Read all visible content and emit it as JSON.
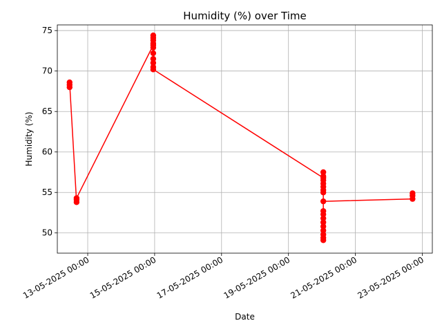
{
  "chart_data": {
    "type": "line",
    "title": "Humidity (%) over Time",
    "xlabel": "Date",
    "ylabel": "Humidity (%)",
    "x_is_datetime": true,
    "x_date_format": "DD-MM-YYYY HH:mm",
    "xlim": [
      "2025-05-12T02:12",
      "2025-05-23T07:12"
    ],
    "ylim": [
      47.5,
      75.7
    ],
    "grid": true,
    "legend": "none",
    "x_ticks": [
      {
        "value": "2025-05-13T00:00",
        "label": "13-05-2025 00:00"
      },
      {
        "value": "2025-05-15T00:00",
        "label": "15-05-2025 00:00"
      },
      {
        "value": "2025-05-17T00:00",
        "label": "17-05-2025 00:00"
      },
      {
        "value": "2025-05-19T00:00",
        "label": "19-05-2025 00:00"
      },
      {
        "value": "2025-05-21T00:00",
        "label": "21-05-2025 00:00"
      },
      {
        "value": "2025-05-23T00:00",
        "label": "23-05-2025 00:00"
      }
    ],
    "y_ticks": [
      {
        "value": 50,
        "label": "50"
      },
      {
        "value": 55,
        "label": "55"
      },
      {
        "value": 60,
        "label": "60"
      },
      {
        "value": 65,
        "label": "65"
      },
      {
        "value": 70,
        "label": "70"
      },
      {
        "value": 75,
        "label": "75"
      }
    ],
    "series": [
      {
        "color": "#ff0000",
        "marker": "circle",
        "points": [
          {
            "x": "2025-05-12T11:00",
            "y": 68.0
          },
          {
            "x": "2025-05-12T11:00",
            "y": 68.3
          },
          {
            "x": "2025-05-12T11:00",
            "y": 68.6
          },
          {
            "x": "2025-05-12T16:00",
            "y": 53.8
          },
          {
            "x": "2025-05-12T16:00",
            "y": 54.1
          },
          {
            "x": "2025-05-12T16:00",
            "y": 54.3
          },
          {
            "x": "2025-05-14T23:00",
            "y": 73.2
          },
          {
            "x": "2025-05-14T23:00",
            "y": 74.4
          },
          {
            "x": "2025-05-14T23:00",
            "y": 74.1
          },
          {
            "x": "2025-05-14T23:00",
            "y": 73.8
          },
          {
            "x": "2025-05-14T23:00",
            "y": 73.4
          },
          {
            "x": "2025-05-14T23:00",
            "y": 72.9
          },
          {
            "x": "2025-05-14T23:00",
            "y": 72.2
          },
          {
            "x": "2025-05-14T23:00",
            "y": 71.5
          },
          {
            "x": "2025-05-14T23:00",
            "y": 71.0
          },
          {
            "x": "2025-05-14T23:00",
            "y": 70.5
          },
          {
            "x": "2025-05-14T23:00",
            "y": 70.2
          },
          {
            "x": "2025-05-20T01:00",
            "y": 56.8
          },
          {
            "x": "2025-05-20T01:00",
            "y": 57.5
          },
          {
            "x": "2025-05-20T01:00",
            "y": 57.0
          },
          {
            "x": "2025-05-20T01:00",
            "y": 56.5
          },
          {
            "x": "2025-05-20T01:00",
            "y": 56.1
          },
          {
            "x": "2025-05-20T01:00",
            "y": 55.7
          },
          {
            "x": "2025-05-20T01:00",
            "y": 55.3
          },
          {
            "x": "2025-05-20T01:00",
            "y": 55.0
          },
          {
            "x": "2025-05-20T01:00",
            "y": 52.7
          },
          {
            "x": "2025-05-20T01:00",
            "y": 52.3
          },
          {
            "x": "2025-05-20T01:00",
            "y": 51.8
          },
          {
            "x": "2025-05-20T01:00",
            "y": 51.3
          },
          {
            "x": "2025-05-20T01:00",
            "y": 50.8
          },
          {
            "x": "2025-05-20T01:00",
            "y": 50.3
          },
          {
            "x": "2025-05-20T01:00",
            "y": 49.8
          },
          {
            "x": "2025-05-20T01:00",
            "y": 49.4
          },
          {
            "x": "2025-05-20T01:00",
            "y": 49.1
          },
          {
            "x": "2025-05-20T01:00",
            "y": 53.9
          },
          {
            "x": "2025-05-22T17:00",
            "y": 54.2
          },
          {
            "x": "2025-05-22T17:00",
            "y": 54.6
          },
          {
            "x": "2025-05-22T17:00",
            "y": 54.9
          }
        ]
      }
    ]
  }
}
